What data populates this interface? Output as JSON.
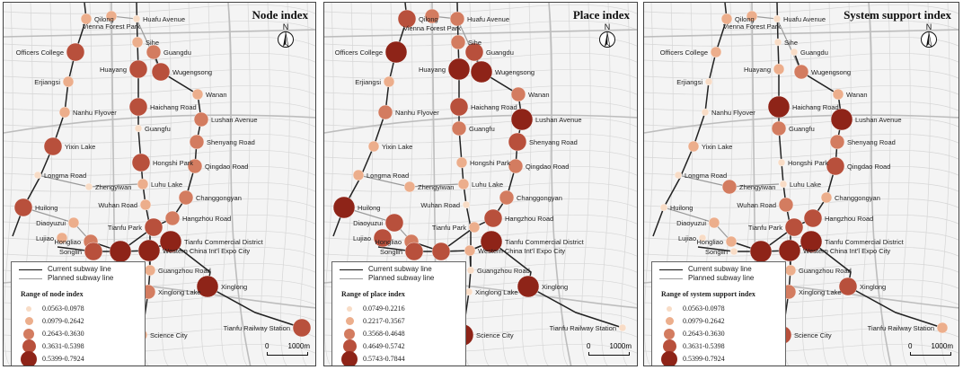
{
  "panels": [
    {
      "title": "Node index",
      "legend": {
        "current_line": "Current  subway line",
        "planned_line": "Planned subway line",
        "range_title": "Range of node index",
        "classes": [
          "0.0563-0.0978",
          "0.0979-0.2642",
          "0.2643-0.3630",
          "0.3631-0.5398",
          "0.5399-0.7924"
        ]
      },
      "scale": {
        "zero": "0",
        "distance": "1000m"
      },
      "north": "N",
      "stations": [
        {
          "name": "Qilong",
          "c": 2
        },
        {
          "name": "Vienna Forest Park",
          "c": 2
        },
        {
          "name": "Huafu Avenue",
          "c": 1
        },
        {
          "name": "Officers College",
          "c": 4
        },
        {
          "name": "Sihe",
          "c": 2
        },
        {
          "name": "Guangdu",
          "c": 3
        },
        {
          "name": "Huayang",
          "c": 4
        },
        {
          "name": "Wugengsong",
          "c": 4
        },
        {
          "name": "Erjiangsi",
          "c": 2
        },
        {
          "name": "Wanan",
          "c": 2
        },
        {
          "name": "Haichang Road",
          "c": 4
        },
        {
          "name": "Nanhu Flyover",
          "c": 2
        },
        {
          "name": "Lushan Avenue",
          "c": 3
        },
        {
          "name": "Guangfu",
          "c": 1
        },
        {
          "name": "Yixin Lake",
          "c": 4
        },
        {
          "name": "Shenyang Road",
          "c": 3
        },
        {
          "name": "Hongshi Park",
          "c": 4
        },
        {
          "name": "Qingdao Road",
          "c": 3
        },
        {
          "name": "Longma Road",
          "c": 1
        },
        {
          "name": "Luhu Lake",
          "c": 2
        },
        {
          "name": "Zhengyiwan",
          "c": 1
        },
        {
          "name": "Changgongyan",
          "c": 3
        },
        {
          "name": "Huilong",
          "c": 4
        },
        {
          "name": "Wuhan Road",
          "c": 2
        },
        {
          "name": "Hangzhou Road",
          "c": 3
        },
        {
          "name": "Diaoyuzui",
          "c": 2
        },
        {
          "name": "Tianfu Park",
          "c": 4
        },
        {
          "name": "Lujiao",
          "c": 2
        },
        {
          "name": "Hongliao",
          "c": 3
        },
        {
          "name": "Songlin",
          "c": 4
        },
        {
          "name": "Tianfu Commercial District",
          "c": 5
        },
        {
          "name": "Qinhuangsi",
          "c": 5
        },
        {
          "name": "Western China Int'l Expo City",
          "c": 5
        },
        {
          "name": "Guangzhou Road",
          "c": 2
        },
        {
          "name": "Xinglong",
          "c": 5
        },
        {
          "name": "Xinglong Lake",
          "c": 3
        },
        {
          "name": "Tianfu Railway Station",
          "c": 4
        },
        {
          "name": "Science City",
          "c": 2
        }
      ]
    },
    {
      "title": "Place index",
      "legend": {
        "current_line": "Current  subway line",
        "planned_line": "Planned subway line",
        "range_title": "Range of place index",
        "classes": [
          "0.0749-0.2216",
          "0.2217-0.3567",
          "0.3568-0.4648",
          "0.4649-0.5742",
          "0.5743-0.7844"
        ]
      },
      "scale": {
        "zero": "0",
        "distance": "1000m"
      },
      "north": "N",
      "stations": [
        {
          "name": "Qilong",
          "c": 4
        },
        {
          "name": "Vienna Forest Park",
          "c": 3
        },
        {
          "name": "Huafu Avenue",
          "c": 3
        },
        {
          "name": "Officers College",
          "c": 5
        },
        {
          "name": "Sihe",
          "c": 3
        },
        {
          "name": "Guangdu",
          "c": 4
        },
        {
          "name": "Huayang",
          "c": 5
        },
        {
          "name": "Wugengsong",
          "c": 5
        },
        {
          "name": "Erjiangsi",
          "c": 2
        },
        {
          "name": "Wanan",
          "c": 3
        },
        {
          "name": "Haichang Road",
          "c": 4
        },
        {
          "name": "Nanhu Flyover",
          "c": 3
        },
        {
          "name": "Lushan Avenue",
          "c": 5
        },
        {
          "name": "Guangfu",
          "c": 3
        },
        {
          "name": "Yixin Lake",
          "c": 2
        },
        {
          "name": "Shenyang Road",
          "c": 4
        },
        {
          "name": "Hongshi Park",
          "c": 2
        },
        {
          "name": "Qingdao Road",
          "c": 3
        },
        {
          "name": "Longma Road",
          "c": 2
        },
        {
          "name": "Luhu Lake",
          "c": 2
        },
        {
          "name": "Zhengyiwan",
          "c": 2
        },
        {
          "name": "Changgongyan",
          "c": 3
        },
        {
          "name": "Huilong",
          "c": 5
        },
        {
          "name": "Wuhan Road",
          "c": 1
        },
        {
          "name": "Hangzhou Road",
          "c": 4
        },
        {
          "name": "Diaoyuzui",
          "c": 4
        },
        {
          "name": "Tianfu Park",
          "c": 2
        },
        {
          "name": "Lujiao",
          "c": 4
        },
        {
          "name": "Hongliao",
          "c": 3
        },
        {
          "name": "Songlin",
          "c": 4
        },
        {
          "name": "Tianfu Commercial District",
          "c": 5
        },
        {
          "name": "Qinhuangsi",
          "c": 4
        },
        {
          "name": "Western China Int'l Expo City",
          "c": 2
        },
        {
          "name": "Guangzhou Road",
          "c": 1
        },
        {
          "name": "Xinglong",
          "c": 5
        },
        {
          "name": "Xinglong Lake",
          "c": 1
        },
        {
          "name": "Tianfu Railway Station",
          "c": 1
        },
        {
          "name": "Science City",
          "c": 5
        }
      ]
    },
    {
      "title": "System support index",
      "legend": {
        "current_line": "Current  subway line",
        "planned_line": "Planned subway line",
        "range_title": "Range of system support index",
        "classes": [
          "0.0563-0.0978",
          "0.0979-0.2642",
          "0.2643-0.3630",
          "0.3631-0.5398",
          "0.5399-0.7924"
        ]
      },
      "scale": {
        "zero": "0",
        "distance": "1000m"
      },
      "north": "N",
      "stations": [
        {
          "name": "Qilong",
          "c": 2
        },
        {
          "name": "Vienna Forest Park",
          "c": 2
        },
        {
          "name": "Huafu Avenue",
          "c": 1
        },
        {
          "name": "Officers College",
          "c": 2
        },
        {
          "name": "Sihe",
          "c": 1
        },
        {
          "name": "Guangdu",
          "c": 1
        },
        {
          "name": "Huayang",
          "c": 2
        },
        {
          "name": "Wugengsong",
          "c": 3
        },
        {
          "name": "Erjiangsi",
          "c": 1
        },
        {
          "name": "Wanan",
          "c": 2
        },
        {
          "name": "Haichang Road",
          "c": 5
        },
        {
          "name": "Nanhu Flyover",
          "c": 1
        },
        {
          "name": "Lushan Avenue",
          "c": 5
        },
        {
          "name": "Guangfu",
          "c": 3
        },
        {
          "name": "Yixin Lake",
          "c": 2
        },
        {
          "name": "Shenyang Road",
          "c": 3
        },
        {
          "name": "Hongshi Park",
          "c": 1
        },
        {
          "name": "Qingdao Road",
          "c": 4
        },
        {
          "name": "Longma Road",
          "c": 1
        },
        {
          "name": "Luhu Lake",
          "c": 1
        },
        {
          "name": "Zhengyiwan",
          "c": 3
        },
        {
          "name": "Changgongyan",
          "c": 2
        },
        {
          "name": "Huilong",
          "c": 1
        },
        {
          "name": "Wuhan Road",
          "c": 3
        },
        {
          "name": "Hangzhou Road",
          "c": 4
        },
        {
          "name": "Diaoyuzui",
          "c": 2
        },
        {
          "name": "Tianfu Park",
          "c": 4
        },
        {
          "name": "Lujiao",
          "c": 1
        },
        {
          "name": "Hongliao",
          "c": 2
        },
        {
          "name": "Songlin",
          "c": 1
        },
        {
          "name": "Tianfu Commercial District",
          "c": 5
        },
        {
          "name": "Qinhuangsi",
          "c": 5
        },
        {
          "name": "Western China Int'l Expo City",
          "c": 5
        },
        {
          "name": "Guangzhou Road",
          "c": 2
        },
        {
          "name": "Xinglong",
          "c": 4
        },
        {
          "name": "Xinglong Lake",
          "c": 3
        },
        {
          "name": "Tianfu Railway Station",
          "c": 2
        },
        {
          "name": "Science City",
          "c": 4
        }
      ]
    }
  ],
  "class_colors": [
    "#f8dcc6",
    "#ecae8c",
    "#d37c60",
    "#b8503c",
    "#8e2418"
  ]
}
